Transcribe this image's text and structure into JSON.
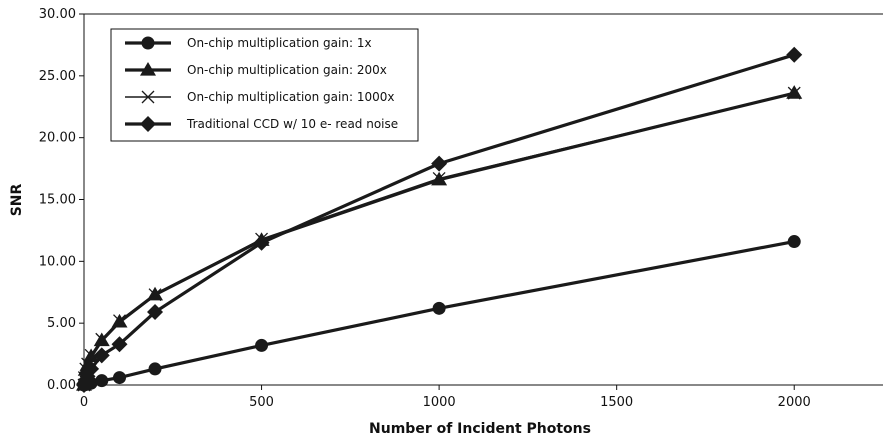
{
  "chart_data": {
    "type": "line",
    "title": "",
    "xlabel": "Number of Incident Photons",
    "ylabel": "SNR",
    "xlim": [
      0,
      2250
    ],
    "ylim": [
      0,
      30
    ],
    "x_ticks": [
      0,
      500,
      1000,
      1500,
      2000
    ],
    "x_tick_labels": [
      "0",
      "500",
      "1000",
      "1500",
      "2000"
    ],
    "y_ticks": [
      0,
      5,
      10,
      15,
      20,
      25,
      30
    ],
    "y_tick_labels": [
      "0.00",
      "5.00",
      "10.00",
      "15.00",
      "20.00",
      "25.00",
      "30.00"
    ],
    "grid": false,
    "legend_position": "top-left",
    "series": [
      {
        "name": "On-chip multiplication gain: 1x",
        "marker": "circle",
        "line_weight": "heavy",
        "color": "#1a1a1a",
        "x": [
          0,
          1,
          5,
          10,
          20,
          50,
          100,
          200,
          500,
          1000,
          2000
        ],
        "y": [
          0.0,
          0.1,
          0.05,
          0.08,
          0.15,
          0.35,
          0.6,
          1.3,
          3.2,
          6.2,
          11.6
        ]
      },
      {
        "name": "On-chip multiplication gain: 200x",
        "marker": "triangle",
        "line_weight": "heavy",
        "color": "#1a1a1a",
        "x": [
          0,
          1,
          5,
          10,
          20,
          50,
          100,
          200,
          500,
          1000,
          2000
        ],
        "y": [
          0.0,
          0.5,
          1.2,
          1.6,
          2.3,
          3.6,
          5.1,
          7.3,
          11.7,
          16.6,
          23.6
        ]
      },
      {
        "name": "On-chip multiplication gain: 1000x",
        "marker": "x",
        "line_weight": "thin",
        "color": "#1a1a1a",
        "x": [
          0,
          1,
          5,
          10,
          20,
          50,
          100,
          200,
          500,
          1000,
          2000
        ],
        "y": [
          0.0,
          0.6,
          1.3,
          1.7,
          2.4,
          3.7,
          5.2,
          7.3,
          11.8,
          16.7,
          23.6
        ]
      },
      {
        "name": "Traditional CCD w/ 10 e- read noise",
        "marker": "diamond",
        "line_weight": "heavy",
        "color": "#1a1a1a",
        "x": [
          0,
          1,
          5,
          10,
          20,
          50,
          100,
          200,
          500,
          1000,
          2000
        ],
        "y": [
          0.0,
          0.1,
          0.4,
          0.7,
          1.3,
          2.4,
          3.3,
          5.9,
          11.5,
          17.9,
          26.7
        ]
      }
    ]
  }
}
